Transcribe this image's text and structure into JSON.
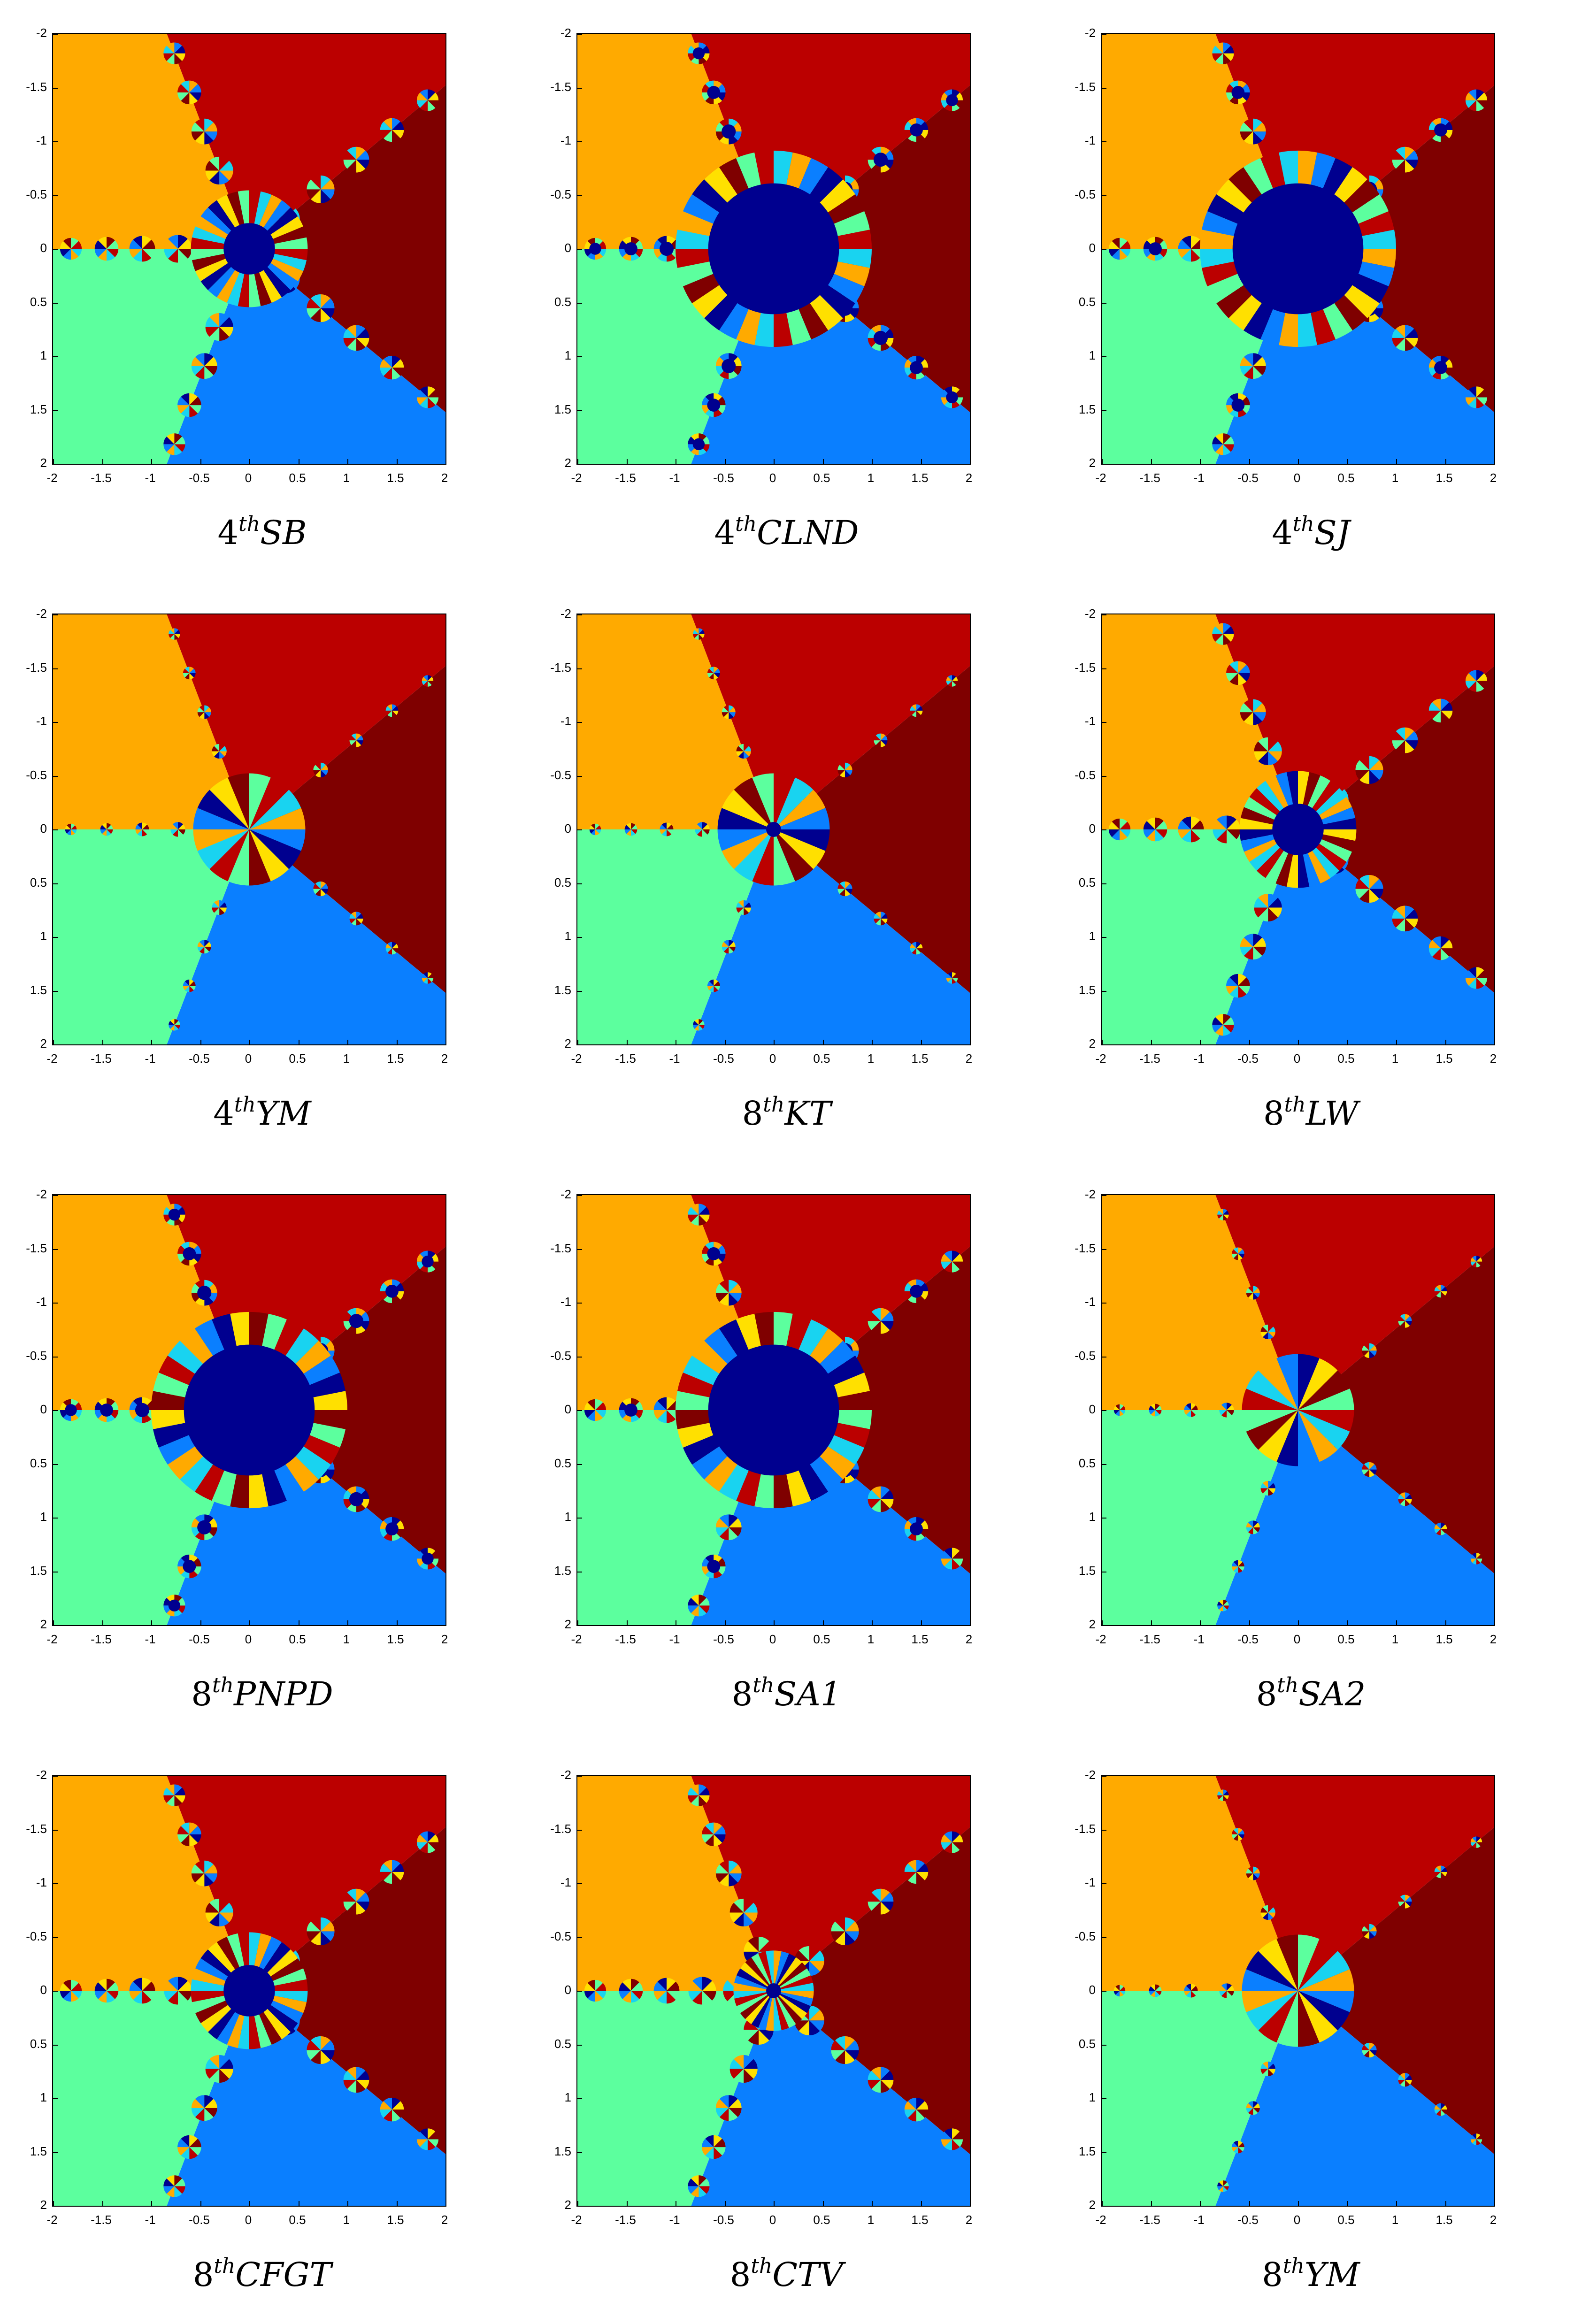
{
  "figure": {
    "x_ticks": [
      "-2",
      "-1.5",
      "-1",
      "-0.5",
      "0",
      "0.5",
      "1",
      "1.5",
      "2"
    ],
    "y_ticks": [
      "-2",
      "-1.5",
      "-1",
      "-0.5",
      "0",
      "0.5",
      "1",
      "1.5",
      "2"
    ],
    "colors": {
      "orange": "#FFAA00",
      "red": "#BB0000",
      "dark_red": "#7F0000",
      "green": "#5CFF9E",
      "blue": "#0A7FFF",
      "navy": "#00008F",
      "cyan": "#19D3F0",
      "yellow": "#FFE000"
    },
    "panels": [
      {
        "caption_order": "4",
        "caption_sup": "th",
        "caption_method": "SB",
        "center_blob": "small",
        "style": "petals"
      },
      {
        "caption_order": "4",
        "caption_sup": "th",
        "caption_method": "CLND",
        "center_blob": "large",
        "style": "blobs"
      },
      {
        "caption_order": "4",
        "caption_sup": "th",
        "caption_method": "SJ",
        "center_blob": "large",
        "style": "petals"
      },
      {
        "caption_order": "4",
        "caption_sup": "th",
        "caption_method": "YM",
        "center_blob": "none",
        "style": "star"
      },
      {
        "caption_order": "8",
        "caption_sup": "th",
        "caption_method": "KT",
        "center_blob": "tiny",
        "style": "star"
      },
      {
        "caption_order": "8",
        "caption_sup": "th",
        "caption_method": "LW",
        "center_blob": "small",
        "style": "petals"
      },
      {
        "caption_order": "8",
        "caption_sup": "th",
        "caption_method": "PNPD",
        "center_blob": "large",
        "style": "blobs"
      },
      {
        "caption_order": "8",
        "caption_sup": "th",
        "caption_method": "SA1",
        "center_blob": "large",
        "style": "petals"
      },
      {
        "caption_order": "8",
        "caption_sup": "th",
        "caption_method": "SA2",
        "center_blob": "none",
        "style": "star"
      },
      {
        "caption_order": "8",
        "caption_sup": "th",
        "caption_method": "CFGT",
        "center_blob": "small",
        "style": "petals"
      },
      {
        "caption_order": "8",
        "caption_sup": "th",
        "caption_method": "CTV",
        "center_blob": "tiny",
        "style": "petals"
      },
      {
        "caption_order": "8",
        "caption_sup": "th",
        "caption_method": "YM",
        "center_blob": "none",
        "style": "star"
      }
    ]
  }
}
